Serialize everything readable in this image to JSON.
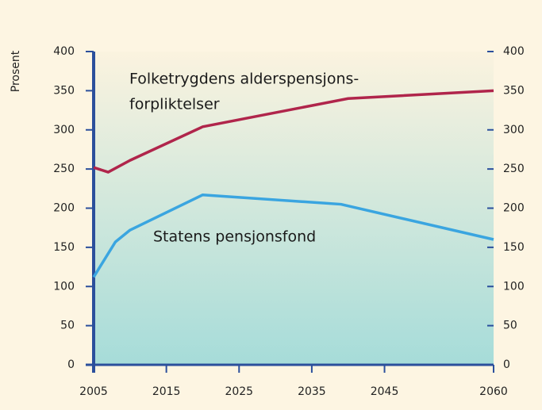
{
  "chart_data": {
    "type": "line",
    "ylabel": "Prosent",
    "annotations": [
      "Folketrygdens alderspensjons-",
      "forpliktelser",
      "Statens pensjonsfond"
    ],
    "xlim": [
      2005,
      2060
    ],
    "xticks": [
      2005,
      2015,
      2025,
      2035,
      2045,
      2060
    ],
    "ylim": [
      0,
      400
    ],
    "yticks": [
      0,
      50,
      100,
      150,
      200,
      250,
      300,
      350,
      400
    ],
    "y2lim": [
      0,
      400
    ],
    "y2ticks": [
      0,
      50,
      100,
      150,
      200,
      250,
      300,
      350,
      400
    ],
    "series": [
      {
        "color": "#b0254b",
        "x": [
          2005,
          2007,
          2010,
          2020,
          2040,
          2060
        ],
        "values": [
          252,
          246,
          261,
          304,
          340,
          350
        ]
      },
      {
        "color": "#3aa5e0",
        "x": [
          2005,
          2008,
          2010,
          2020,
          2039,
          2060
        ],
        "values": [
          112,
          157,
          172,
          217,
          205,
          160
        ]
      }
    ]
  }
}
